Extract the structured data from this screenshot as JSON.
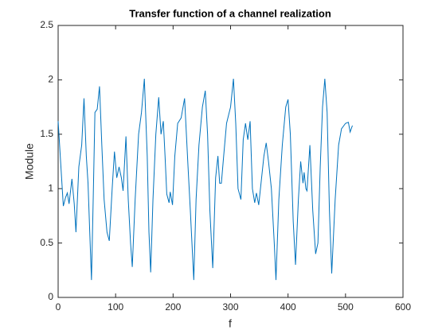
{
  "chart_data": {
    "type": "line",
    "title": "Transfer function of a channel realization",
    "x_label": "f",
    "y_label": "Module",
    "xlim": [
      0,
      600
    ],
    "xticks": [
      0,
      100,
      200,
      300,
      400,
      500,
      600
    ],
    "ylim": [
      0,
      2.5
    ],
    "yticks": [
      0,
      0.5,
      1,
      1.5,
      2,
      2.5
    ],
    "x": [
      0,
      6,
      9,
      13,
      16,
      19,
      24,
      28,
      31,
      36,
      41,
      45,
      49,
      52,
      55,
      58,
      61,
      64,
      68,
      72,
      76,
      80,
      85,
      89,
      94,
      98,
      102,
      106,
      110,
      113,
      118,
      122,
      126,
      129,
      134,
      140,
      145,
      150,
      155,
      158,
      161,
      165,
      170,
      175,
      179,
      183,
      186,
      189,
      193,
      195,
      199,
      203,
      208,
      214,
      220,
      226,
      230,
      236,
      240,
      245,
      251,
      256,
      260,
      264,
      269,
      274,
      278,
      281,
      284,
      288,
      293,
      300,
      305,
      309,
      313,
      318,
      322,
      326,
      330,
      334,
      338,
      342,
      345,
      349,
      354,
      358,
      362,
      366,
      371,
      376,
      379,
      384,
      390,
      396,
      400,
      404,
      409,
      413,
      418,
      422,
      426,
      428,
      431,
      433,
      438,
      443,
      448,
      452,
      456,
      460,
      464,
      468,
      472,
      476,
      482,
      488,
      493,
      500,
      505,
      508,
      512
    ],
    "series": [
      {
        "name": "Module",
        "color": "#0072bd",
        "values": [
          1.62,
          1.1,
          0.84,
          0.92,
          0.96,
          0.86,
          1.09,
          0.86,
          0.6,
          1.2,
          1.4,
          1.83,
          1.3,
          1.05,
          0.6,
          0.16,
          0.9,
          1.7,
          1.73,
          1.94,
          1.4,
          0.9,
          0.6,
          0.52,
          1.0,
          1.34,
          1.1,
          1.2,
          1.1,
          0.98,
          1.48,
          0.9,
          0.5,
          0.28,
          0.9,
          1.5,
          1.7,
          2.01,
          1.3,
          0.6,
          0.23,
          0.9,
          1.5,
          1.84,
          1.5,
          1.62,
          1.3,
          0.95,
          0.87,
          0.97,
          0.85,
          1.3,
          1.6,
          1.65,
          1.83,
          1.2,
          0.8,
          0.16,
          0.9,
          1.4,
          1.75,
          1.9,
          1.5,
          0.8,
          0.27,
          1.1,
          1.3,
          1.05,
          1.05,
          1.3,
          1.6,
          1.75,
          2.01,
          1.6,
          1.0,
          0.9,
          1.45,
          1.6,
          1.45,
          1.62,
          1.0,
          0.87,
          0.96,
          0.85,
          1.1,
          1.3,
          1.42,
          1.25,
          1.0,
          0.5,
          0.16,
          0.9,
          1.4,
          1.75,
          1.82,
          1.5,
          0.7,
          0.3,
          0.9,
          1.25,
          1.05,
          1.15,
          1.0,
          0.98,
          1.4,
          0.8,
          0.4,
          0.5,
          1.2,
          1.75,
          2.01,
          1.7,
          0.8,
          0.22,
          0.9,
          1.4,
          1.55,
          1.6,
          1.61,
          1.52,
          1.58
        ]
      }
    ]
  }
}
